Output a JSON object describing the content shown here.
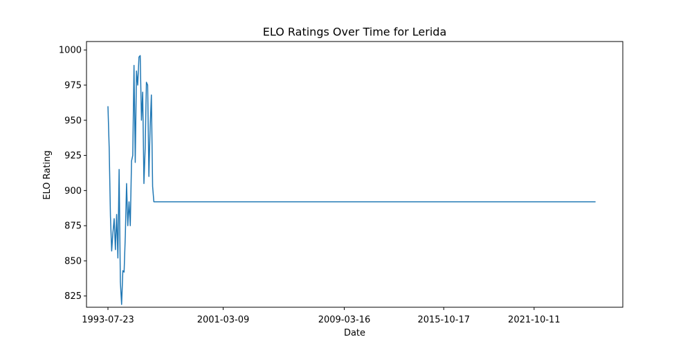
{
  "chart_data": {
    "type": "line",
    "title": "ELO Ratings Over Time for Lerida",
    "xlabel": "Date",
    "ylabel": "ELO Rating",
    "x_ticks": [
      "1993-07-23",
      "2001-03-09",
      "2009-03-16",
      "2015-10-17",
      "2021-10-11"
    ],
    "y_ticks": [
      825,
      850,
      875,
      900,
      925,
      950,
      975,
      1000
    ],
    "xlim": [
      "1992-02-20",
      "2027-08-26"
    ],
    "ylim": [
      817,
      1006
    ],
    "grid": false,
    "color": "#1f77b4",
    "series": [
      {
        "x": [
          "1993-07-23",
          "1993-08-22",
          "1993-09-21",
          "1993-10-21",
          "1993-11-20",
          "1993-12-20",
          "1994-01-19",
          "1994-02-18",
          "1994-03-20",
          "1994-04-19",
          "1994-05-19",
          "1994-06-18",
          "1994-07-18",
          "1994-08-17",
          "1994-09-16",
          "1994-10-16",
          "1994-11-15",
          "1994-12-15",
          "1995-01-14",
          "1995-02-13",
          "1995-03-15",
          "1995-04-14",
          "1995-05-14",
          "1995-06-13",
          "1995-07-13",
          "1995-08-12",
          "1995-09-11",
          "1995-10-11",
          "1995-11-10",
          "1995-12-10",
          "1996-01-09",
          "1996-02-08",
          "1996-03-09",
          "1996-04-08",
          "1996-05-08",
          "1996-06-07",
          "1996-07-07",
          "1996-08-06",
          "1996-09-05",
          "1996-10-05",
          "1996-11-04",
          "1996-12-04",
          "1997-01-03",
          "2025-11-05"
        ],
        "y": [
          960,
          930,
          882,
          857,
          870,
          880,
          858,
          883,
          852,
          915,
          835,
          819,
          843,
          842,
          868,
          905,
          875,
          892,
          875,
          921,
          925,
          989,
          920,
          985,
          975,
          995,
          996,
          950,
          970,
          905,
          930,
          977,
          975,
          910,
          945,
          968,
          903,
          892,
          892,
          892,
          892,
          892,
          892,
          892
        ]
      }
    ]
  }
}
